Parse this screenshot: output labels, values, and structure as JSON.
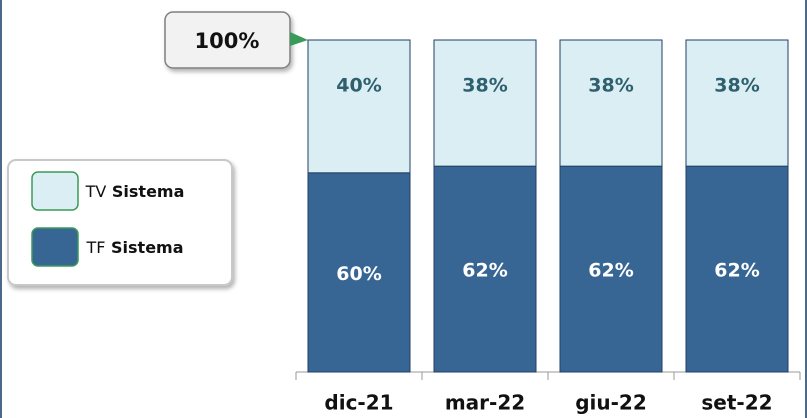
{
  "chart_data": {
    "type": "stacked_bar",
    "annotation": "100%",
    "categories": [
      "dic-21",
      "mar-22",
      "giu-22",
      "set-22"
    ],
    "series": [
      {
        "name": "TF Sistema",
        "color": "#386694",
        "values": [
          60,
          62,
          62,
          62
        ],
        "value_labels": [
          "60%",
          "62%",
          "62%",
          "62%"
        ]
      },
      {
        "name": "TV Sistema",
        "color": "#daeef3",
        "values": [
          40,
          38,
          38,
          38
        ],
        "value_labels": [
          "40%",
          "38%",
          "38%",
          "38%"
        ]
      }
    ],
    "ylim": [
      0,
      100
    ]
  }
}
